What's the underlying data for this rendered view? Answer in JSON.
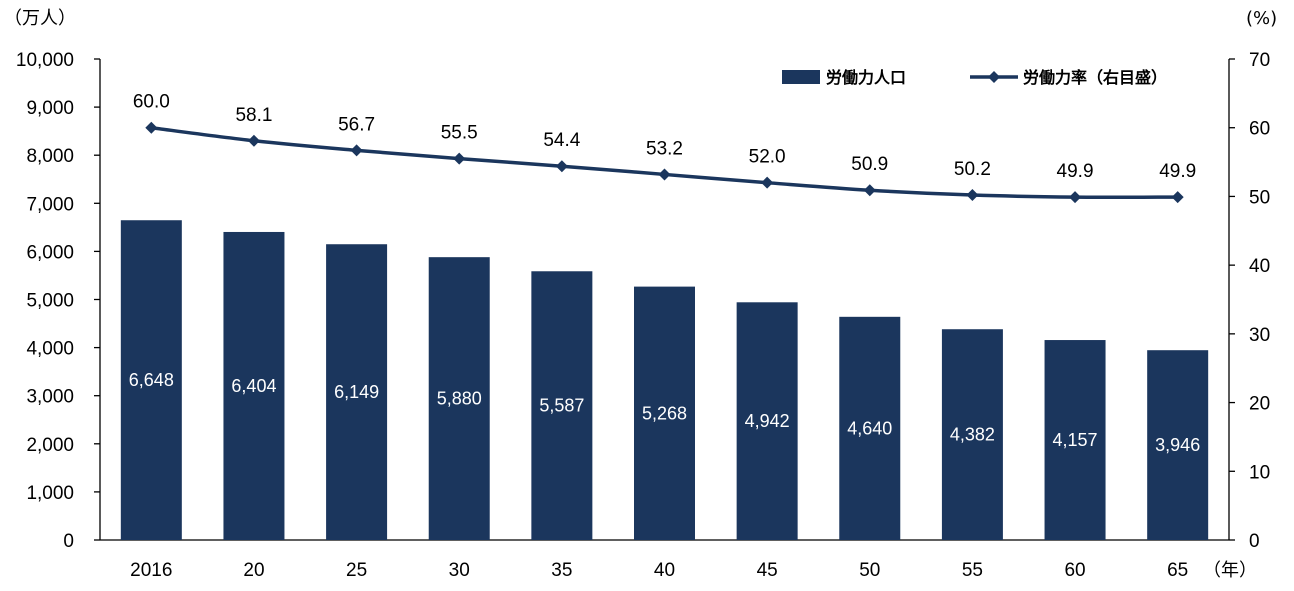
{
  "colors": {
    "bar": "#1b365d",
    "line": "#1b365d",
    "axis": "#000000"
  },
  "chart_data": {
    "type": "bar",
    "categories": [
      "2016",
      "20",
      "25",
      "30",
      "35",
      "40",
      "45",
      "50",
      "55",
      "60",
      "65"
    ],
    "series": [
      {
        "name": "労働力人口",
        "type": "bar",
        "axis": "left",
        "values": [
          6648,
          6404,
          6149,
          5880,
          5587,
          5268,
          4942,
          4640,
          4382,
          4157,
          3946
        ],
        "labels": [
          "6,648",
          "6,404",
          "6,149",
          "5,880",
          "5,587",
          "5,268",
          "4,942",
          "4,640",
          "4,382",
          "4,157",
          "3,946"
        ]
      },
      {
        "name": "労働力率（右目盛）",
        "type": "line",
        "axis": "right",
        "marker": "diamond",
        "values": [
          60.0,
          58.1,
          56.7,
          55.5,
          54.4,
          53.2,
          52.0,
          50.9,
          50.2,
          49.9,
          49.9
        ],
        "labels": [
          "60.0",
          "58.1",
          "56.7",
          "55.5",
          "54.4",
          "53.2",
          "52.0",
          "50.9",
          "50.2",
          "49.9",
          "49.9"
        ]
      }
    ],
    "y_left": {
      "unit": "（万人）",
      "range": [
        0,
        10000
      ],
      "ticks": [
        "0",
        "1,000",
        "2,000",
        "3,000",
        "4,000",
        "5,000",
        "6,000",
        "7,000",
        "8,000",
        "9,000",
        "10,000"
      ]
    },
    "y_right": {
      "unit": "(%)",
      "range": [
        0,
        70
      ],
      "ticks": [
        "0",
        "10",
        "20",
        "30",
        "40",
        "50",
        "60",
        "70"
      ]
    },
    "x_unit": "（年）",
    "legend": {
      "position": "top-right",
      "items": [
        "労働力人口",
        "労働力率（右目盛）"
      ]
    },
    "grid": false
  }
}
